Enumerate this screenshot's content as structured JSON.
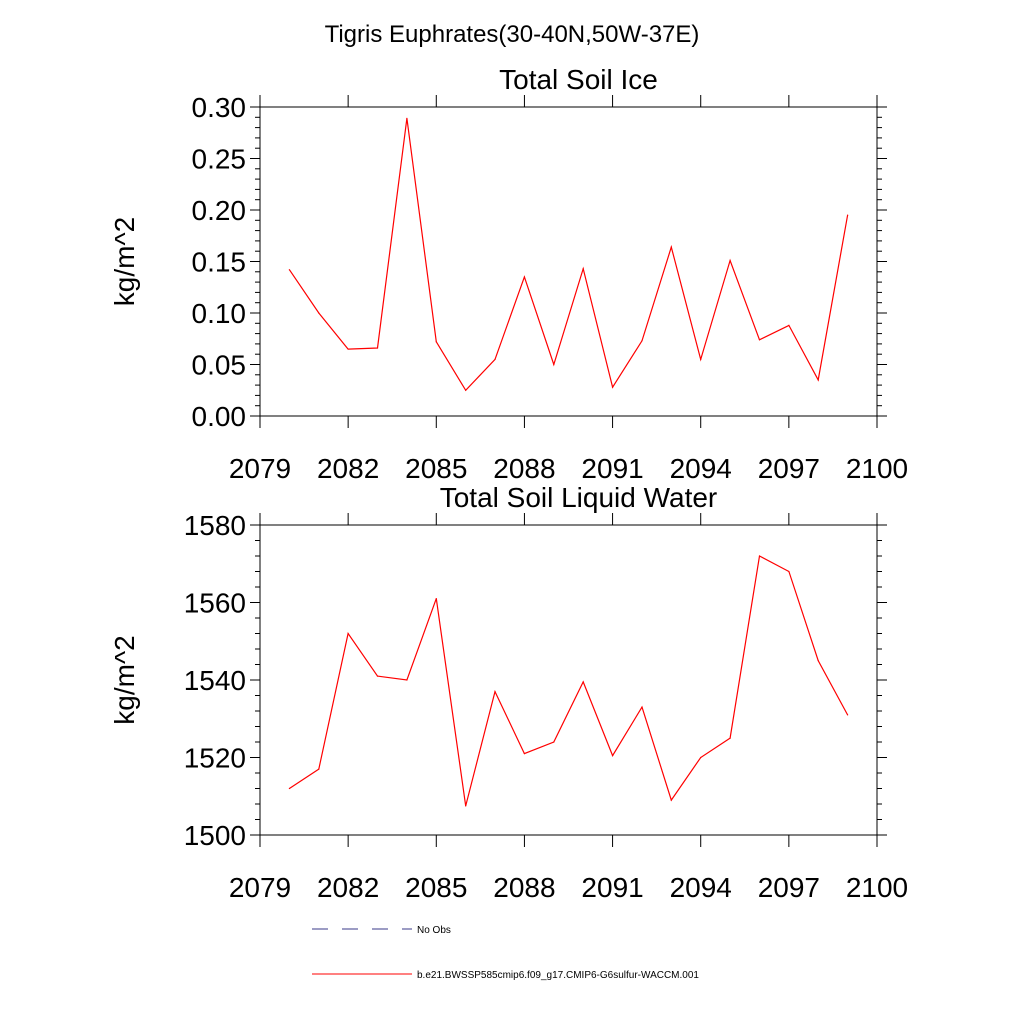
{
  "page": {
    "title": "Tigris Euphrates(30-40N,50W-37E)"
  },
  "legend": {
    "entries": [
      {
        "label": "No Obs",
        "style": "dashed",
        "color": "#3a3a8a"
      },
      {
        "label": "b.e21.BWSSP585cmip6.f09_g17.CMIP6-G6sulfur-WACCM.001",
        "style": "solid",
        "color": "#ff0000"
      }
    ]
  },
  "chart_data": [
    {
      "type": "line",
      "title": "Total Soil Ice",
      "xlabel": "",
      "ylabel": "kg/m^2",
      "xlim": [
        2079,
        2100
      ],
      "ylim": [
        0,
        0.3
      ],
      "x_ticks": [
        "2079",
        "2082",
        "2085",
        "2088",
        "2091",
        "2094",
        "2097",
        "2100"
      ],
      "y_ticks": [
        "0.00",
        "0.05",
        "0.10",
        "0.15",
        "0.20",
        "0.25",
        "0.30"
      ],
      "grid": false,
      "series": [
        {
          "name": "b.e21.BWSSP585cmip6.f09_g17.CMIP6-G6sulfur-WACCM.001",
          "color": "#ff0000",
          "x": [
            2080,
            2081,
            2082,
            2083,
            2084,
            2085,
            2086,
            2087,
            2088,
            2089,
            2090,
            2091,
            2092,
            2093,
            2094,
            2095,
            2096,
            2097,
            2098,
            2099
          ],
          "values": [
            0.142,
            0.1,
            0.065,
            0.066,
            0.289,
            0.072,
            0.025,
            0.055,
            0.135,
            0.05,
            0.143,
            0.028,
            0.073,
            0.164,
            0.055,
            0.151,
            0.074,
            0.088,
            0.035,
            0.195
          ]
        }
      ]
    },
    {
      "type": "line",
      "title": "Total Soil Liquid Water",
      "xlabel": "",
      "ylabel": "kg/m^2",
      "xlim": [
        2079,
        2100
      ],
      "ylim": [
        1500,
        1580
      ],
      "x_ticks": [
        "2079",
        "2082",
        "2085",
        "2088",
        "2091",
        "2094",
        "2097",
        "2100"
      ],
      "y_ticks": [
        "1500",
        "1520",
        "1540",
        "1560",
        "1580"
      ],
      "grid": false,
      "series": [
        {
          "name": "b.e21.BWSSP585cmip6.f09_g17.CMIP6-G6sulfur-WACCM.001",
          "color": "#ff0000",
          "x": [
            2080,
            2081,
            2082,
            2083,
            2084,
            2085,
            2086,
            2087,
            2088,
            2089,
            2090,
            2091,
            2092,
            2093,
            2094,
            2095,
            2096,
            2097,
            2098,
            2099
          ],
          "values": [
            1512,
            1517,
            1552,
            1541,
            1540,
            1561,
            1507.5,
            1537,
            1521,
            1524,
            1539.5,
            1520.5,
            1533,
            1509,
            1520,
            1525,
            1572,
            1568,
            1545,
            1531
          ]
        }
      ]
    }
  ]
}
